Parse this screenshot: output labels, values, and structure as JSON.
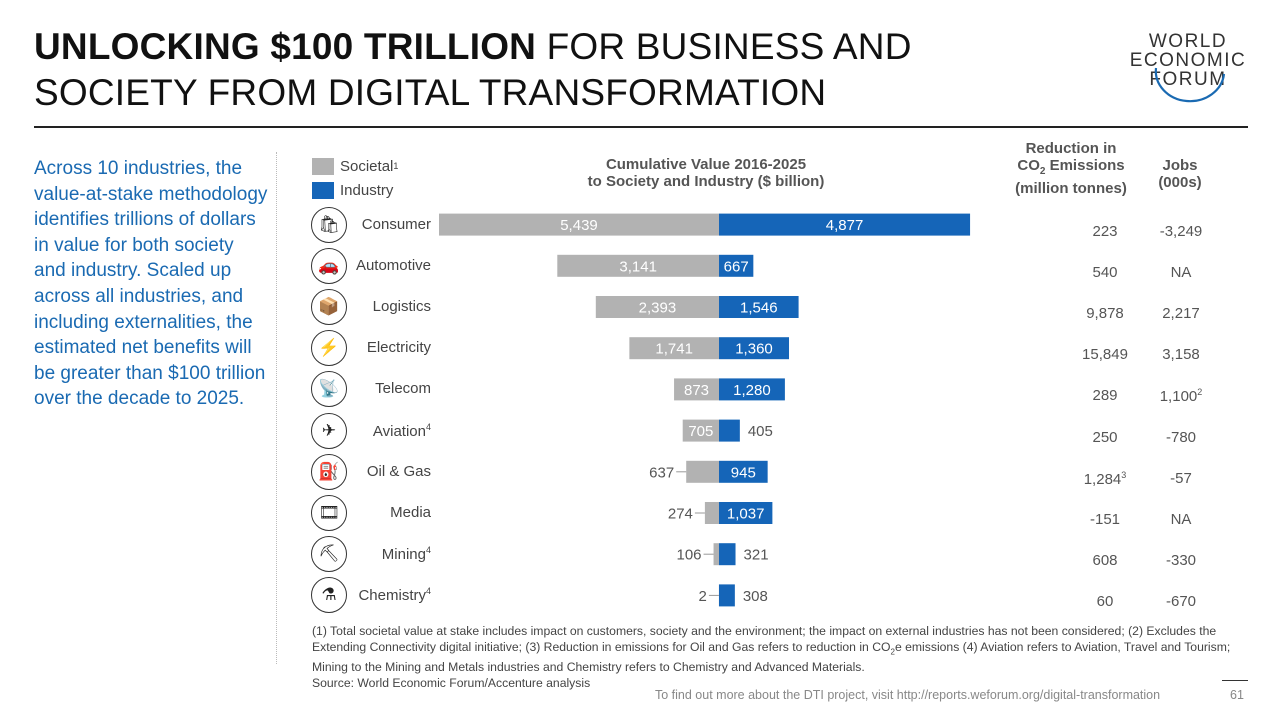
{
  "title": {
    "bold": "UNLOCKING $100 TRILLION",
    "rest": " FOR BUSINESS AND SOCIETY FROM DIGITAL TRANSFORMATION"
  },
  "logo": {
    "line1": "WORLD",
    "line2": "ECONOMIC",
    "line3": "FORUM"
  },
  "intro": "Across 10 industries, the value-at-stake methodology identifies trillions of dollars in value for both society and industry. Scaled up across all industries, and including externalities, the estimated net benefits will be greater than $100 trillion over the decade to 2025.",
  "legend": {
    "societal": "Societal",
    "societal_sup": "1",
    "industry": "Industry"
  },
  "colors": {
    "societal": "#b2b2b2",
    "industry": "#1565b8",
    "intro_text": "#1a6ab2"
  },
  "headers": {
    "chart_line1": "Cumulative Value 2016-2025",
    "chart_line2": "to Society and Industry ($ billion)",
    "co2_line1": "Reduction in",
    "co2_line2a": "CO",
    "co2_sub": "2",
    "co2_line2b": " Emissions",
    "co2_line3": "(million tonnes)",
    "jobs_line1": "Jobs",
    "jobs_line2": "(000s)"
  },
  "chart_data": {
    "type": "bar",
    "title": "Cumulative Value 2016-2025 to Society and Industry ($ billion)",
    "orientation": "diverging-horizontal",
    "categories": [
      "Consumer",
      "Automotive",
      "Logistics",
      "Electricity",
      "Telecom",
      "Aviation",
      "Oil & Gas",
      "Media",
      "Mining",
      "Chemistry"
    ],
    "category_sups": [
      "",
      "",
      "",
      "",
      "",
      "4",
      "",
      "",
      "4",
      "4"
    ],
    "icons": [
      "shopping-bag-icon",
      "car-icon",
      "hand-truck-icon",
      "lightning-icon",
      "satellite-dish-icon",
      "airplane-icon",
      "oil-can-icon",
      "film-icon",
      "mine-cart-icon",
      "flask-icon"
    ],
    "series": [
      {
        "name": "Societal",
        "values": [
          5439,
          3141,
          2393,
          1741,
          873,
          705,
          637,
          274,
          106,
          2
        ],
        "labels": [
          "5,439",
          "3,141",
          "2,393",
          "1,741",
          "873",
          "705",
          "637",
          "274",
          "106",
          "2"
        ]
      },
      {
        "name": "Industry",
        "values": [
          4877,
          667,
          1546,
          1360,
          1280,
          405,
          945,
          1037,
          321,
          308
        ],
        "labels": [
          "4,877",
          "667",
          "1,546",
          "1,360",
          "1,280",
          "405",
          "945",
          "1,037",
          "321",
          "308"
        ]
      }
    ],
    "xlim": [
      -5500,
      5500
    ]
  },
  "table": {
    "co2": [
      "223",
      "540",
      "9,878",
      "15,849",
      "289",
      "250",
      "1,284",
      "-151",
      "608",
      "60"
    ],
    "co2_sups": [
      "",
      "",
      "",
      "",
      "",
      "",
      "3",
      "",
      "",
      ""
    ],
    "jobs": [
      "-3,249",
      "NA",
      "2,217",
      "3,158",
      "1,100",
      "-780",
      "-57",
      "NA",
      "-330",
      "-670"
    ],
    "jobs_sups": [
      "",
      "",
      "",
      "",
      "2",
      "",
      "",
      "",
      "",
      ""
    ]
  },
  "footnote": {
    "text1": "(1) Total societal value at stake includes impact on customers, society and the environment; the impact on external industries has not been considered; (2) Excludes the Extending Connectivity digital initiative; (3) Reduction in emissions for Oil and Gas refers to reduction in CO",
    "sub": "2",
    "text2": "e emissions (4) Aviation refers to Aviation, Travel and Tourism; Mining to the Mining and Metals industries and Chemistry refers to Chemistry and Advanced Materials.",
    "source": "Source: World Economic Forum/Accenture analysis"
  },
  "footer": {
    "link_text": "To find out more about the DTI project, visit http://reports.weforum.org/digital-transformation",
    "page_number": "61"
  }
}
